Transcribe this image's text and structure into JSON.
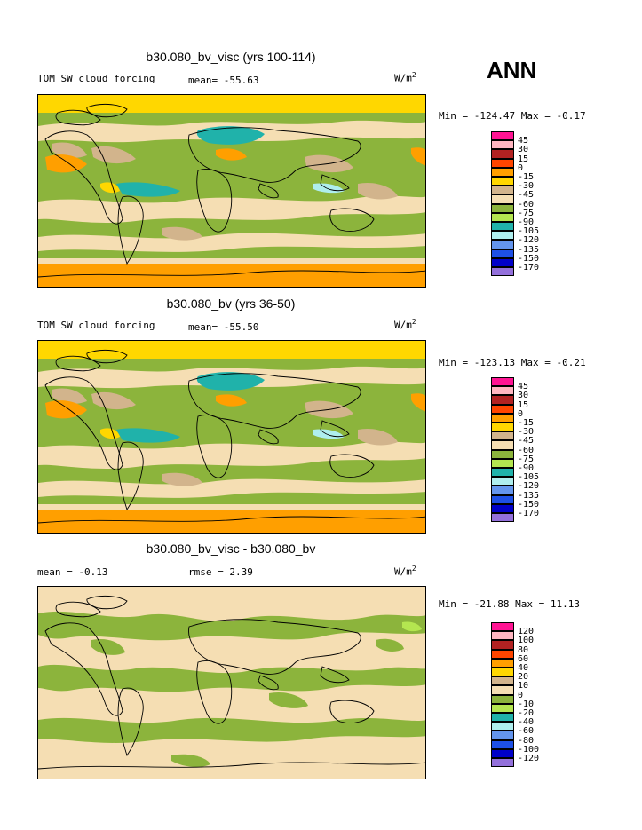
{
  "corner_label": "ANN",
  "panels": [
    {
      "title": "b30.080_bv_visc (yrs 100-114)",
      "left_label": "TOM SW cloud forcing",
      "mid_label": "mean= -55.63",
      "units": "W/m",
      "units_sup": "2",
      "minmax": "Min = -124.47 Max =  -0.17",
      "colorbar": {
        "labels": [
          "45",
          "30",
          "15",
          "0",
          "-15",
          "-30",
          "-45",
          "-60",
          "-75",
          "-90",
          "-105",
          "-120",
          "-135",
          "-150",
          "-170"
        ],
        "colors": [
          "#ff1493",
          "#ffb6c1",
          "#b22222",
          "#ff4500",
          "#ff9f00",
          "#ffd700",
          "#d2b48c",
          "#f5deb3",
          "#8cb43c",
          "#b4e650",
          "#20b2aa",
          "#afeeee",
          "#6495ed",
          "#1e50e6",
          "#0000c8",
          "#9370db"
        ]
      },
      "map_style": "control"
    },
    {
      "title": "b30.080_bv (yrs 36-50)",
      "left_label": "TOM SW cloud forcing",
      "mid_label": "mean= -55.50",
      "units": "W/m",
      "units_sup": "2",
      "minmax": "Min = -123.13 Max =  -0.21",
      "colorbar": {
        "labels": [
          "45",
          "30",
          "15",
          "0",
          "-15",
          "-30",
          "-45",
          "-60",
          "-75",
          "-90",
          "-105",
          "-120",
          "-135",
          "-150",
          "-170"
        ],
        "colors": [
          "#ff1493",
          "#ffb6c1",
          "#b22222",
          "#ff4500",
          "#ff9f00",
          "#ffd700",
          "#d2b48c",
          "#f5deb3",
          "#8cb43c",
          "#b4e650",
          "#20b2aa",
          "#afeeee",
          "#6495ed",
          "#1e50e6",
          "#0000c8",
          "#9370db"
        ]
      },
      "map_style": "control"
    },
    {
      "title": "b30.080_bv_visc - b30.080_bv",
      "left_label": "mean =  -0.13",
      "mid_label": "rmse =   2.39",
      "units": "W/m",
      "units_sup": "2",
      "minmax": "Min = -21.88 Max =  11.13",
      "colorbar": {
        "labels": [
          "120",
          "100",
          "80",
          "60",
          "40",
          "20",
          "10",
          "0",
          "-10",
          "-20",
          "-40",
          "-60",
          "-80",
          "-100",
          "-120"
        ],
        "colors": [
          "#ff1493",
          "#ffb6c1",
          "#b22222",
          "#ff4500",
          "#ff9f00",
          "#ffd700",
          "#d2b48c",
          "#f5deb3",
          "#8cb43c",
          "#b4e650",
          "#20b2aa",
          "#afeeee",
          "#6495ed",
          "#1e50e6",
          "#0000c8",
          "#9370db"
        ]
      },
      "map_style": "diff"
    }
  ]
}
